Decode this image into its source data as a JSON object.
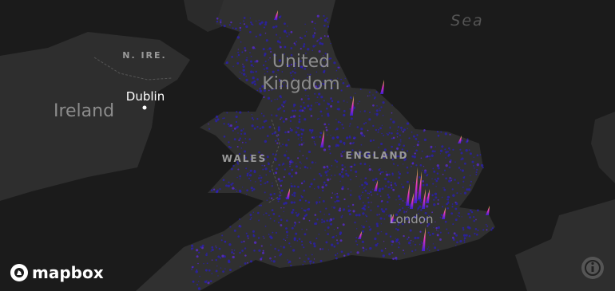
{
  "map": {
    "labels": {
      "sea": "Sea",
      "n_ire": "N. IRE.",
      "ireland": "Ireland",
      "dublin": "Dublin",
      "united_kingdom_line1": "United",
      "united_kingdom_line2": "Kingdom",
      "wales": "WALES",
      "england": "ENGLAND",
      "london": "London"
    },
    "attribution": {
      "logo": "mapbox"
    }
  }
}
